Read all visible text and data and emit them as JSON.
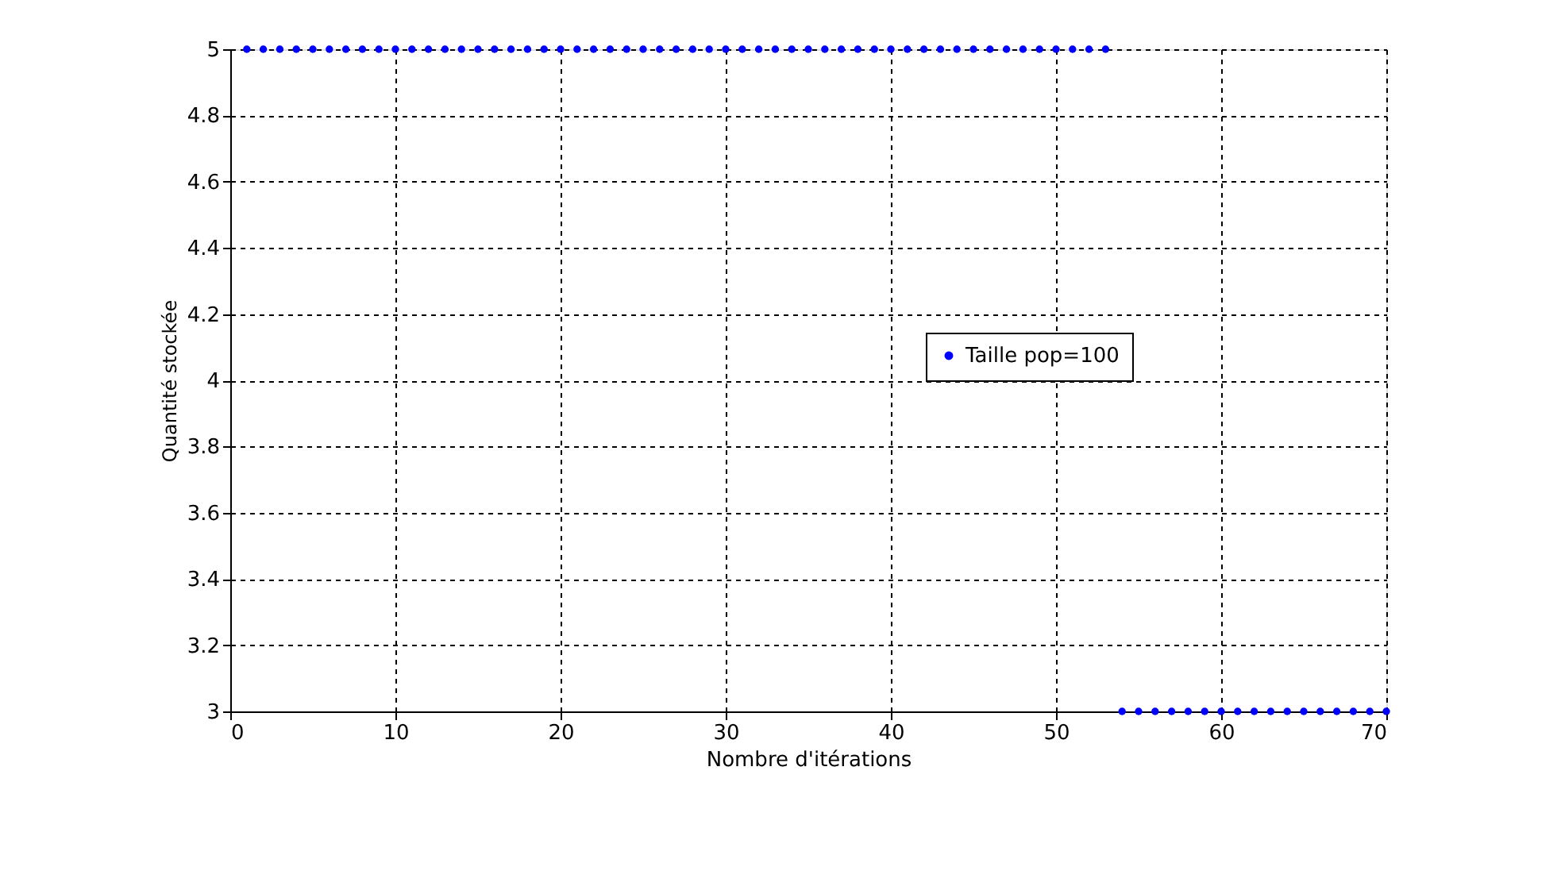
{
  "chart_data": {
    "type": "scatter",
    "xlabel": "Nombre d'itérations",
    "ylabel": "Quantité stockée",
    "x": [
      1,
      2,
      3,
      4,
      5,
      6,
      7,
      8,
      9,
      10,
      11,
      12,
      13,
      14,
      15,
      16,
      17,
      18,
      19,
      20,
      21,
      22,
      23,
      24,
      25,
      26,
      27,
      28,
      29,
      30,
      31,
      32,
      33,
      34,
      35,
      36,
      37,
      38,
      39,
      40,
      41,
      42,
      43,
      44,
      45,
      46,
      47,
      48,
      49,
      50,
      51,
      52,
      53,
      54,
      55,
      56,
      57,
      58,
      59,
      60,
      61,
      62,
      63,
      64,
      65,
      66,
      67,
      68,
      69,
      70
    ],
    "series": [
      {
        "name": "Taille pop=100",
        "color": "#0000ff",
        "values": [
          5,
          5,
          5,
          5,
          5,
          5,
          5,
          5,
          5,
          5,
          5,
          5,
          5,
          5,
          5,
          5,
          5,
          5,
          5,
          5,
          5,
          5,
          5,
          5,
          5,
          5,
          5,
          5,
          5,
          5,
          5,
          5,
          5,
          5,
          5,
          5,
          5,
          5,
          5,
          5,
          5,
          5,
          5,
          5,
          5,
          5,
          5,
          5,
          5,
          5,
          5,
          5,
          5,
          3,
          3,
          3,
          3,
          3,
          3,
          3,
          3,
          3,
          3,
          3,
          3,
          3,
          3,
          3,
          3,
          3
        ]
      }
    ],
    "xlim": [
      0,
      70
    ],
    "xticks": [
      0,
      10,
      20,
      30,
      40,
      50,
      60,
      70
    ],
    "ylim": [
      3,
      5
    ],
    "yticks": [
      3,
      3.2,
      3.4,
      3.6,
      3.8,
      4,
      4.2,
      4.4,
      4.6,
      4.8,
      5
    ],
    "grid": true,
    "legend": "right",
    "marker": "circle"
  }
}
